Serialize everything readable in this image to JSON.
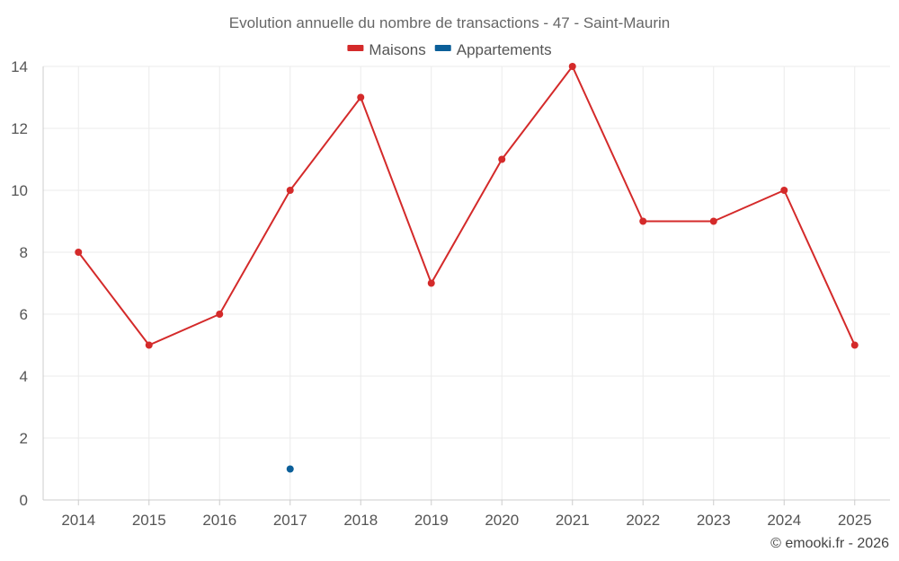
{
  "chart_data": {
    "type": "line",
    "title": "Evolution annuelle du nombre de transactions - 47 - Saint-Maurin",
    "categories": [
      "2014",
      "2015",
      "2016",
      "2017",
      "2018",
      "2019",
      "2020",
      "2021",
      "2022",
      "2023",
      "2024",
      "2025"
    ],
    "series": [
      {
        "name": "Maisons",
        "color": "#d42a2a",
        "values": [
          8,
          5,
          6,
          10,
          13,
          7,
          11,
          14,
          9,
          9,
          10,
          5
        ]
      },
      {
        "name": "Appartements",
        "color": "#0b5f99",
        "values": [
          null,
          null,
          null,
          1,
          null,
          null,
          null,
          null,
          null,
          null,
          null,
          null
        ]
      }
    ],
    "ylim": [
      0,
      14
    ],
    "yticks": [
      0,
      2,
      4,
      6,
      8,
      10,
      12,
      14
    ],
    "grid": true,
    "legend_position": "top-center",
    "xlabel": "",
    "ylabel": ""
  },
  "credit": "© emooki.fr - 2026"
}
